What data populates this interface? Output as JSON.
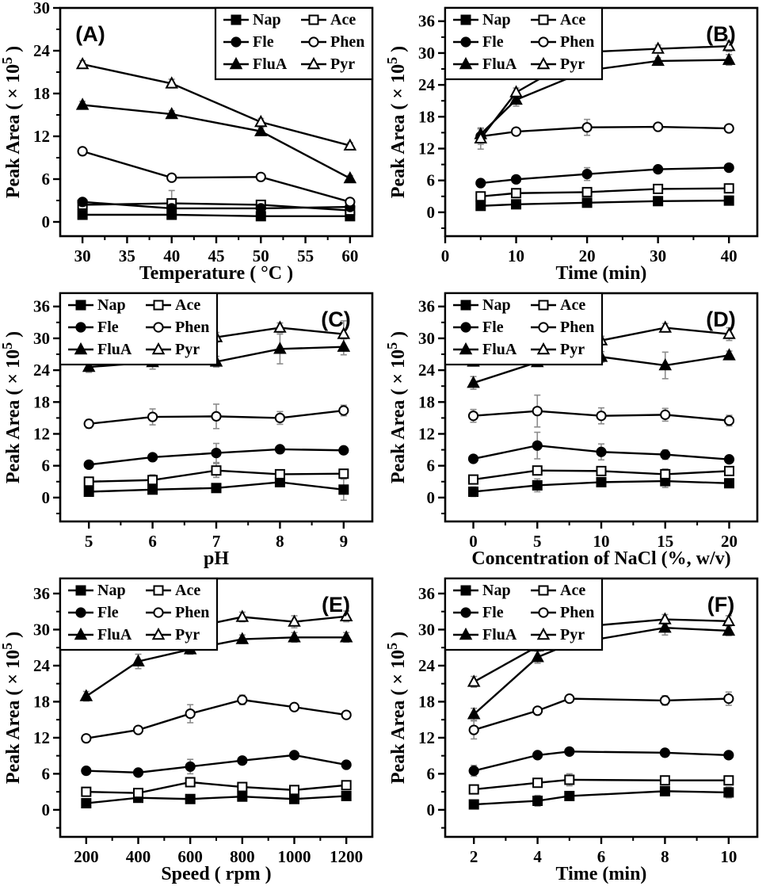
{
  "figure": {
    "background": "#ffffff",
    "foreground": "#000000",
    "error_bar_color": "#8c8c8c",
    "ylabel": "Peak Area ( × 10⁵ )",
    "ylabel_parts": {
      "prefix": "Peak Area ( × 10",
      "sup": "5",
      "suffix": " )"
    }
  },
  "legend": {
    "columns": [
      [
        "Nap",
        "Fle",
        "FluA"
      ],
      [
        "Ace",
        "Phen",
        "Pyr"
      ]
    ],
    "markers": {
      "Nap": {
        "marker": "square",
        "fill": "filled"
      },
      "Ace": {
        "marker": "square",
        "fill": "open"
      },
      "Fle": {
        "marker": "circle",
        "fill": "filled"
      },
      "Phen": {
        "marker": "circle",
        "fill": "open"
      },
      "FluA": {
        "marker": "triangle",
        "fill": "filled"
      },
      "Pyr": {
        "marker": "triangle",
        "fill": "open"
      }
    }
  },
  "chart_data": [
    {
      "type": "line",
      "panel_label": "(A)",
      "panel_label_pos": "top-left",
      "legend_pos": "top-right",
      "xlabel": "Temperature ( °C )",
      "ylabel": "Peak Area ( × 10⁵ )",
      "x": [
        30,
        40,
        50,
        60
      ],
      "x_ticks": [
        30,
        35,
        40,
        45,
        50,
        55,
        60
      ],
      "xlim": [
        27.5,
        62.5
      ],
      "y_ticks": [
        0,
        6,
        12,
        18,
        24,
        30
      ],
      "ylim": [
        -2,
        30
      ],
      "series": [
        {
          "name": "Nap",
          "marker": "square",
          "fill": "filled",
          "values": [
            1.0,
            1.0,
            0.8,
            0.8
          ],
          "errors": [
            0.2,
            0.3,
            0.2,
            0.2
          ]
        },
        {
          "name": "Ace",
          "marker": "square",
          "fill": "open",
          "values": [
            2.4,
            2.6,
            2.4,
            1.6
          ],
          "errors": [
            0.3,
            1.8,
            0.3,
            0.3
          ]
        },
        {
          "name": "Fle",
          "marker": "circle",
          "fill": "filled",
          "values": [
            2.8,
            1.9,
            1.9,
            2.1
          ],
          "errors": [
            0.2,
            0.4,
            0.3,
            0.2
          ]
        },
        {
          "name": "Phen",
          "marker": "circle",
          "fill": "open",
          "values": [
            9.9,
            6.2,
            6.3,
            2.8
          ],
          "errors": [
            0.4,
            0.3,
            0.4,
            0.3
          ]
        },
        {
          "name": "FluA",
          "marker": "triangle",
          "fill": "filled",
          "values": [
            16.4,
            15.1,
            12.7,
            6.1
          ],
          "errors": [
            0.5,
            0.5,
            0.5,
            0.4
          ]
        },
        {
          "name": "Pyr",
          "marker": "triangle",
          "fill": "open",
          "values": [
            22.1,
            19.4,
            14.0,
            10.7
          ],
          "errors": [
            0.5,
            0.6,
            0.5,
            0.4
          ]
        }
      ]
    },
    {
      "type": "line",
      "panel_label": "(B)",
      "panel_label_pos": "top-right",
      "legend_pos": "top-left",
      "xlabel": "Time (min)",
      "ylabel": "Peak Area ( × 10⁵ )",
      "x": [
        5,
        10,
        20,
        30,
        40
      ],
      "x_ticks": [
        0,
        10,
        20,
        30,
        40
      ],
      "xlim": [
        0,
        44
      ],
      "y_ticks": [
        0,
        6,
        12,
        18,
        24,
        30,
        36
      ],
      "ylim": [
        -4.5,
        38.5
      ],
      "series": [
        {
          "name": "Nap",
          "marker": "square",
          "fill": "filled",
          "values": [
            1.2,
            1.5,
            1.8,
            2.1,
            2.2
          ],
          "errors": [
            0.2,
            0.2,
            0.3,
            0.3,
            0.3
          ]
        },
        {
          "name": "Ace",
          "marker": "square",
          "fill": "open",
          "values": [
            3.0,
            3.6,
            3.8,
            4.4,
            4.5
          ],
          "errors": [
            0.3,
            0.4,
            0.4,
            0.4,
            0.5
          ]
        },
        {
          "name": "Fle",
          "marker": "circle",
          "fill": "filled",
          "values": [
            5.5,
            6.2,
            7.2,
            8.1,
            8.4
          ],
          "errors": [
            0.3,
            0.4,
            1.2,
            0.4,
            0.4
          ]
        },
        {
          "name": "Phen",
          "marker": "circle",
          "fill": "open",
          "values": [
            14.3,
            15.2,
            16.0,
            16.1,
            15.8
          ],
          "errors": [
            1.5,
            0.5,
            1.5,
            0.5,
            0.5
          ]
        },
        {
          "name": "FluA",
          "marker": "triangle",
          "fill": "filled",
          "values": [
            14.7,
            21.2,
            26.7,
            28.5,
            28.7
          ],
          "errors": [
            1.0,
            1.2,
            0.8,
            0.6,
            1.0
          ]
        },
        {
          "name": "Pyr",
          "marker": "triangle",
          "fill": "open",
          "values": [
            13.9,
            22.6,
            30.2,
            30.8,
            31.3
          ],
          "errors": [
            2.0,
            0.8,
            0.8,
            0.7,
            1.0
          ]
        }
      ]
    },
    {
      "type": "line",
      "panel_label": "(C)",
      "panel_label_pos": "top-right",
      "legend_pos": "top-left",
      "xlabel": "pH",
      "ylabel": "Peak Area ( × 10⁵ )",
      "x": [
        5,
        6,
        7,
        8,
        9
      ],
      "x_ticks": [
        5,
        6,
        7,
        8,
        9
      ],
      "xlim": [
        4.55,
        9.45
      ],
      "y_ticks": [
        0,
        6,
        12,
        18,
        24,
        30,
        36
      ],
      "ylim": [
        -4.5,
        38.5
      ],
      "series": [
        {
          "name": "Nap",
          "marker": "square",
          "fill": "filled",
          "values": [
            1.1,
            1.5,
            1.8,
            2.9,
            1.5
          ],
          "errors": [
            0.3,
            0.4,
            0.5,
            0.5,
            2.0
          ]
        },
        {
          "name": "Ace",
          "marker": "square",
          "fill": "open",
          "values": [
            3.0,
            3.3,
            5.1,
            4.4,
            4.5
          ],
          "errors": [
            0.4,
            1.0,
            1.3,
            0.5,
            0.8
          ]
        },
        {
          "name": "Fle",
          "marker": "circle",
          "fill": "filled",
          "values": [
            6.2,
            7.6,
            8.4,
            9.1,
            8.9
          ],
          "errors": [
            0.5,
            0.5,
            1.8,
            0.6,
            0.5
          ]
        },
        {
          "name": "Phen",
          "marker": "circle",
          "fill": "open",
          "values": [
            13.9,
            15.2,
            15.3,
            15.0,
            16.4
          ],
          "errors": [
            0.8,
            1.5,
            2.3,
            1.2,
            1.0
          ]
        },
        {
          "name": "FluA",
          "marker": "triangle",
          "fill": "filled",
          "values": [
            24.6,
            25.5,
            25.6,
            28.0,
            28.4
          ],
          "errors": [
            1.0,
            1.3,
            1.0,
            2.8,
            1.5
          ]
        },
        {
          "name": "Pyr",
          "marker": "triangle",
          "fill": "open",
          "values": [
            29.2,
            31.0,
            30.2,
            32.0,
            30.8
          ],
          "errors": [
            0.8,
            0.8,
            0.9,
            0.9,
            2.5
          ]
        }
      ]
    },
    {
      "type": "line",
      "panel_label": "(D)",
      "panel_label_pos": "top-right",
      "legend_pos": "top-left",
      "xlabel": "Concentration of NaCl (%, w/v)",
      "ylabel": "Peak Area ( × 10⁵ )",
      "x": [
        0,
        5,
        10,
        15,
        20
      ],
      "x_ticks": [
        0,
        5,
        10,
        15,
        20
      ],
      "xlim": [
        -2.2,
        22.2
      ],
      "y_ticks": [
        0,
        6,
        12,
        18,
        24,
        30,
        36
      ],
      "ylim": [
        -4.5,
        38.5
      ],
      "series": [
        {
          "name": "Nap",
          "marker": "square",
          "fill": "filled",
          "values": [
            1.1,
            2.3,
            2.9,
            3.1,
            2.7
          ],
          "errors": [
            0.9,
            1.2,
            0.7,
            1.2,
            0.5
          ]
        },
        {
          "name": "Ace",
          "marker": "square",
          "fill": "open",
          "values": [
            3.4,
            5.1,
            5.0,
            4.4,
            5.0
          ],
          "errors": [
            0.6,
            0.8,
            0.6,
            1.0,
            0.6
          ]
        },
        {
          "name": "Fle",
          "marker": "circle",
          "fill": "filled",
          "values": [
            7.3,
            9.8,
            8.6,
            8.1,
            7.2
          ],
          "errors": [
            0.7,
            2.5,
            1.5,
            0.9,
            0.6
          ]
        },
        {
          "name": "Phen",
          "marker": "circle",
          "fill": "open",
          "values": [
            15.4,
            16.3,
            15.4,
            15.6,
            14.5
          ],
          "errors": [
            1.2,
            3.0,
            1.5,
            1.2,
            1.0
          ]
        },
        {
          "name": "FluA",
          "marker": "triangle",
          "fill": "filled",
          "values": [
            21.6,
            25.5,
            26.5,
            24.9,
            26.8
          ],
          "errors": [
            1.2,
            0.8,
            1.0,
            2.5,
            0.8
          ]
        },
        {
          "name": "Pyr",
          "marker": "triangle",
          "fill": "open",
          "values": [
            25.6,
            29.2,
            29.6,
            32.0,
            30.8
          ],
          "errors": [
            0.8,
            0.9,
            0.8,
            0.8,
            1.2
          ]
        }
      ]
    },
    {
      "type": "line",
      "panel_label": "(E)",
      "panel_label_pos": "top-right",
      "legend_pos": "top-left",
      "xlabel": "Speed ( rpm )",
      "ylabel": "Peak Area ( × 10⁵ )",
      "x": [
        200,
        400,
        600,
        800,
        1000,
        1200
      ],
      "x_ticks": [
        200,
        400,
        600,
        800,
        1000,
        1200
      ],
      "xlim": [
        100,
        1300
      ],
      "y_ticks": [
        0,
        6,
        12,
        18,
        24,
        30,
        36
      ],
      "ylim": [
        -4.5,
        38.5
      ],
      "series": [
        {
          "name": "Nap",
          "marker": "square",
          "fill": "filled",
          "values": [
            1.1,
            2.0,
            1.8,
            2.2,
            1.8,
            2.3
          ],
          "errors": [
            0.2,
            0.4,
            0.3,
            0.3,
            0.3,
            0.3
          ]
        },
        {
          "name": "Ace",
          "marker": "square",
          "fill": "open",
          "values": [
            3.0,
            2.8,
            4.6,
            3.8,
            3.3,
            4.1
          ],
          "errors": [
            0.4,
            0.5,
            0.5,
            0.6,
            0.5,
            0.6
          ]
        },
        {
          "name": "Fle",
          "marker": "circle",
          "fill": "filled",
          "values": [
            6.5,
            6.2,
            7.2,
            8.2,
            9.1,
            7.5
          ],
          "errors": [
            0.4,
            0.4,
            1.2,
            0.4,
            0.4,
            0.4
          ]
        },
        {
          "name": "Phen",
          "marker": "circle",
          "fill": "open",
          "values": [
            11.9,
            13.3,
            16.0,
            18.3,
            17.1,
            15.8
          ],
          "errors": [
            0.5,
            0.6,
            1.5,
            0.8,
            0.6,
            0.6
          ]
        },
        {
          "name": "FluA",
          "marker": "triangle",
          "fill": "filled",
          "values": [
            18.9,
            24.7,
            26.7,
            28.4,
            28.7,
            28.7
          ],
          "errors": [
            0.8,
            1.2,
            0.8,
            0.7,
            0.8,
            0.8
          ]
        },
        {
          "name": "Pyr",
          "marker": "triangle",
          "fill": "open",
          "values": [
            30.2,
            31.0,
            30.3,
            32.1,
            31.3,
            32.2
          ],
          "errors": [
            1.5,
            0.7,
            0.8,
            0.8,
            1.0,
            0.9
          ]
        }
      ]
    },
    {
      "type": "line",
      "panel_label": "(F)",
      "panel_label_pos": "top-right",
      "legend_pos": "top-left",
      "xlabel": "Time (min)",
      "ylabel": "Peak Area ( × 10⁵ )",
      "x": [
        2,
        4,
        5,
        8,
        10
      ],
      "x_ticks": [
        2,
        4,
        6,
        8,
        10
      ],
      "xlim": [
        1.1,
        10.9
      ],
      "y_ticks": [
        0,
        6,
        12,
        18,
        24,
        30,
        36
      ],
      "ylim": [
        -4.5,
        38.5
      ],
      "series": [
        {
          "name": "Nap",
          "marker": "square",
          "fill": "filled",
          "values": [
            0.9,
            1.5,
            2.3,
            3.1,
            2.9
          ],
          "errors": [
            0.3,
            0.9,
            0.5,
            0.4,
            0.9
          ]
        },
        {
          "name": "Ace",
          "marker": "square",
          "fill": "open",
          "values": [
            3.4,
            4.5,
            5.0,
            4.9,
            4.9
          ],
          "errors": [
            0.5,
            0.6,
            1.0,
            0.5,
            0.5
          ]
        },
        {
          "name": "Fle",
          "marker": "circle",
          "fill": "filled",
          "values": [
            6.5,
            9.1,
            9.7,
            9.5,
            9.1
          ],
          "errors": [
            0.9,
            0.5,
            0.5,
            0.5,
            0.5
          ]
        },
        {
          "name": "Phen",
          "marker": "circle",
          "fill": "open",
          "values": [
            13.3,
            16.5,
            18.5,
            18.2,
            18.5
          ],
          "errors": [
            1.5,
            0.6,
            0.6,
            0.8,
            1.1
          ]
        },
        {
          "name": "FluA",
          "marker": "triangle",
          "fill": "filled",
          "values": [
            15.9,
            25.4,
            27.6,
            30.3,
            29.8
          ],
          "errors": [
            1.0,
            1.0,
            1.0,
            1.2,
            0.8
          ]
        },
        {
          "name": "Pyr",
          "marker": "triangle",
          "fill": "open",
          "values": [
            21.3,
            27.2,
            30.3,
            31.7,
            31.4
          ],
          "errors": [
            0.9,
            2.0,
            0.8,
            0.8,
            0.9
          ]
        }
      ]
    }
  ]
}
